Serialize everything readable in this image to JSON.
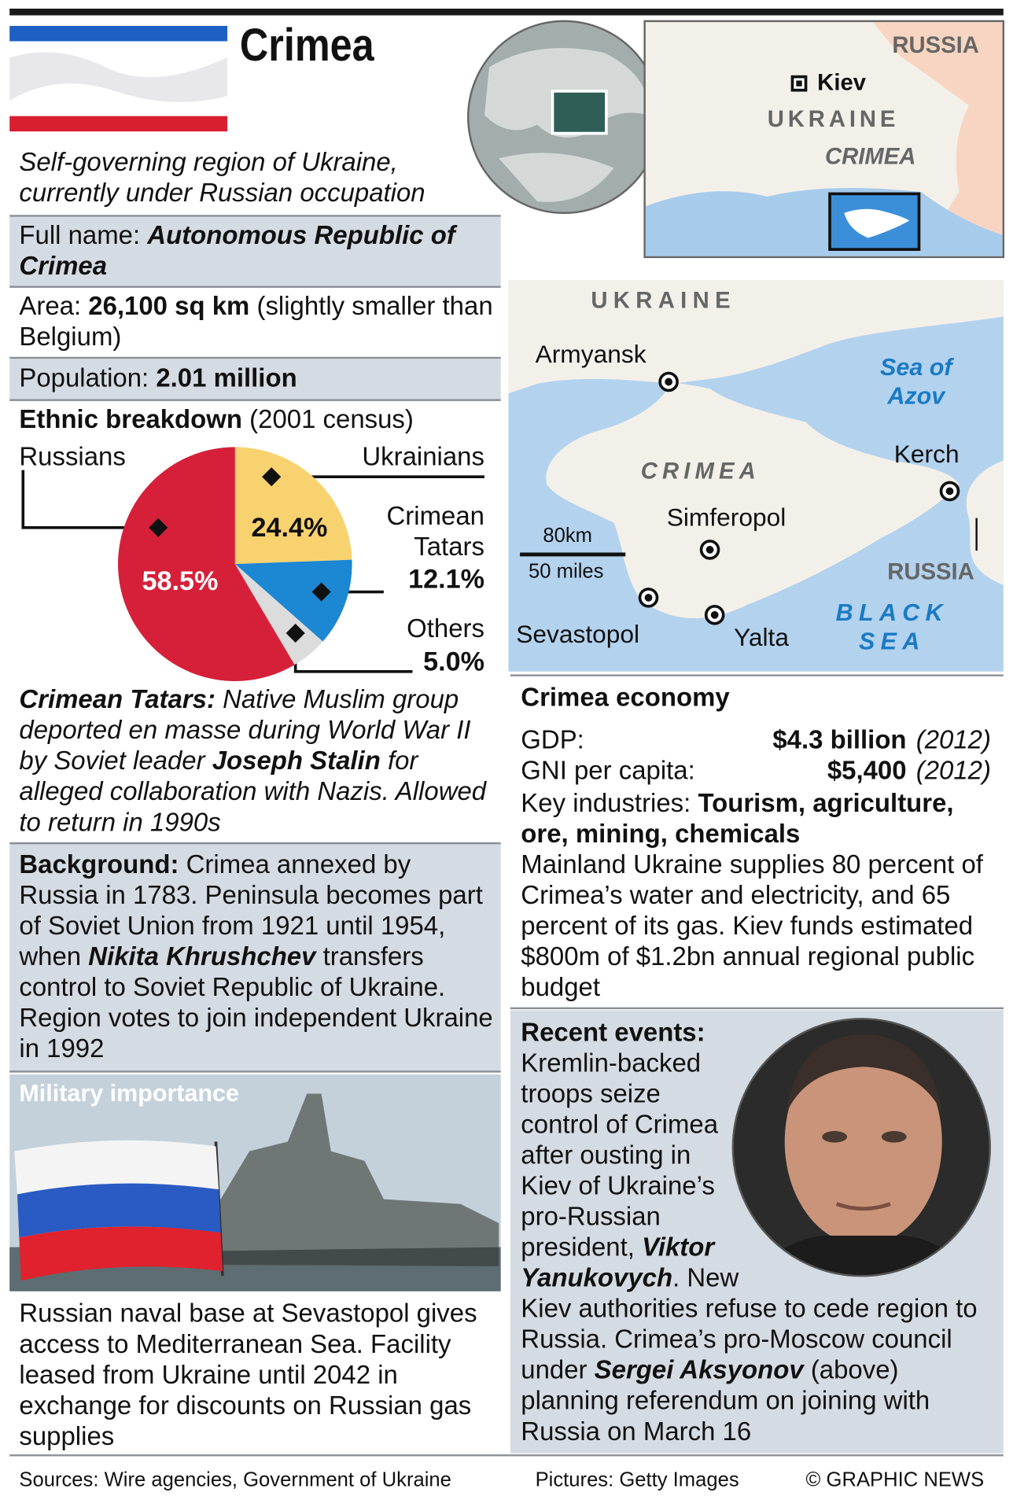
{
  "header": {
    "title": "Crimea",
    "subtitle": "Self-governing region of Ukraine, currently under Russian occupation"
  },
  "facts": [
    {
      "runs": [
        {
          "t": "Full name: "
        },
        {
          "t": "Autonomous Republic of Crimea",
          "s": "bi"
        }
      ]
    },
    {
      "runs": [
        {
          "t": "Area: "
        },
        {
          "t": "26,100 sq km",
          "s": "b"
        },
        {
          "t": " (slightly smaller than Belgium)"
        }
      ]
    },
    {
      "runs": [
        {
          "t": "Population: "
        },
        {
          "t": "2.01 million",
          "s": "b"
        }
      ]
    }
  ],
  "ethnic": {
    "title_runs": [
      {
        "t": "Ethnic breakdown",
        "s": "b"
      },
      {
        "t": " (2001 census)"
      }
    ],
    "chart_data": {
      "type": "pie",
      "categories": [
        "Ukrainians",
        "Crimean Tatars",
        "Others",
        "Russians"
      ],
      "values": [
        24.4,
        12.1,
        5.0,
        58.5
      ],
      "value_labels": [
        "24.4%",
        "12.1%",
        "5.0%",
        "58.5%"
      ],
      "colors": [
        "#f8d26e",
        "#1c87d2",
        "#dcdcdc",
        "#d6203a"
      ]
    }
  },
  "tatars": {
    "runs": [
      {
        "t": "Crimean Tatars:",
        "s": "bi"
      },
      {
        "t": " Native Muslim group deported en masse during World War II by Soviet leader ",
        "s": "i"
      },
      {
        "t": "Joseph Stalin",
        "s": "bi"
      },
      {
        "t": " for alleged collaboration with Nazis. Allowed to return in 1990s",
        "s": "i"
      }
    ]
  },
  "background": {
    "runs": [
      {
        "t": "Background:",
        "s": "b"
      },
      {
        "t": " Crimea annexed by Russia in 1783. Peninsula becomes part of Soviet Union from 1921 until 1954, when "
      },
      {
        "t": "Nikita Khrushchev",
        "s": "bi"
      },
      {
        "t": " transfers control to Soviet Republic of Ukraine. Region votes to join independent Ukraine in 1992"
      }
    ]
  },
  "military": {
    "title": "Military importance",
    "text": "Russian naval base at Sevastopol gives access to Mediterranean Sea. Facility leased from Ukraine until 2042 in exchange for discounts on Russian gas supplies"
  },
  "locator_map": {
    "labels": [
      "RUSSIA",
      "Kiev",
      "UKRAINE",
      "CRIMEA"
    ]
  },
  "main_map": {
    "labels": [
      "UKRAINE",
      "Armyansk",
      "Sea of Azov",
      "CRIMEA",
      "Kerch",
      "Simferopol",
      "80km",
      "50 miles",
      "RUSSIA",
      "Sevastopol",
      "Yalta",
      "BLACK SEA"
    ]
  },
  "economy": {
    "title": "Crimea economy",
    "rows": [
      {
        "label": "GDP:",
        "value": "$4.3 billion",
        "year": "(2012)"
      },
      {
        "label": "GNI per capita:",
        "value": "$5,400",
        "year": "(2012)"
      }
    ],
    "industries": [
      {
        "t": "Key industries: "
      },
      {
        "t": "Tourism, agriculture, ore, mining, chemicals",
        "s": "b"
      }
    ],
    "text": "Mainland Ukraine supplies 80 percent of Crimea’s water and electricity, and 65 percent of its gas. Kiev funds estimated $800m of $1.2bn annual regional public budget"
  },
  "events": {
    "runs": [
      {
        "t": "Recent events:",
        "s": "b"
      },
      {
        "t": " Kremlin-backed troops seize control of Crimea after ousting in Kiev of Ukraine’s pro-Russian president, "
      },
      {
        "t": "Viktor Yanukovych",
        "s": "bi"
      },
      {
        "t": ". New Kiev authorities refuse to cede region to Russia. Crimea’s pro-Moscow council under "
      },
      {
        "t": "Sergei Aksyonov",
        "s": "bi"
      },
      {
        "t": " (above) planning referendum on joining with Russia on March 16"
      }
    ]
  },
  "footer": {
    "sources": "Sources: Wire agencies, Government of Ukraine",
    "pictures": "Pictures: Getty Images",
    "credit": "© GRAPHIC NEWS"
  }
}
